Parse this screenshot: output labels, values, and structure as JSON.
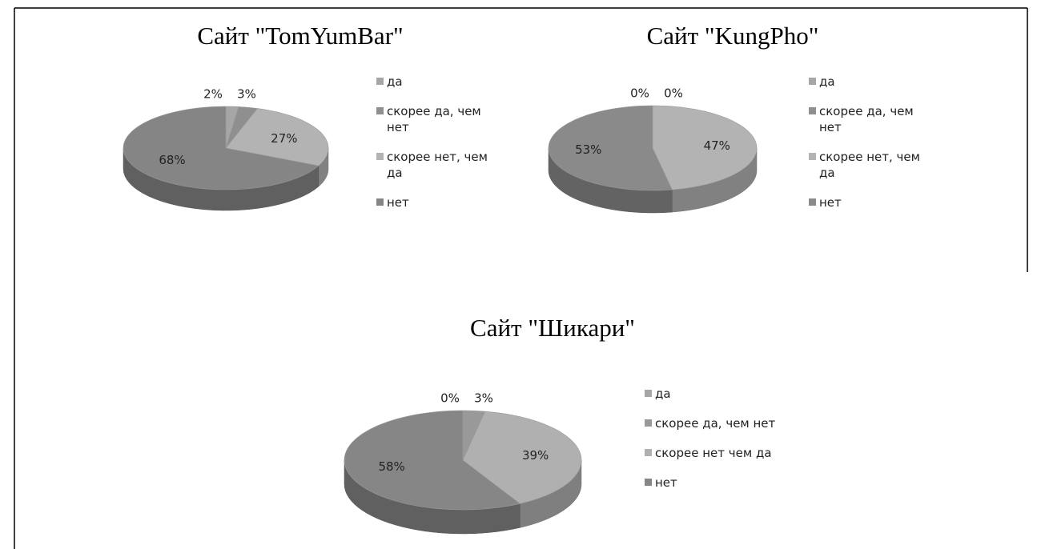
{
  "chart_data": [
    {
      "type": "pie",
      "title": "Сайт \"TomYumBar\"",
      "categories": [
        "да",
        "скорее да, чем нет",
        "скорее нет, чем да",
        "нет"
      ],
      "values": [
        2,
        3,
        27,
        68
      ],
      "value_labels": [
        "2%",
        "3%",
        "27%",
        "68%"
      ],
      "colors": [
        "#a6a6a6",
        "#8f8f8f",
        "#b3b3b3",
        "#858585"
      ]
    },
    {
      "type": "pie",
      "title": "Сайт \"KungPho\"",
      "categories": [
        "да",
        "скорее да, чем нет",
        "скорее нет, чем да",
        "нет"
      ],
      "values": [
        0,
        0,
        47,
        53
      ],
      "value_labels": [
        "0%",
        "0%",
        "47%",
        "53%"
      ],
      "colors": [
        "#a6a6a6",
        "#8f8f8f",
        "#b3b3b3",
        "#8a8a8a"
      ]
    },
    {
      "type": "pie",
      "title": "Сайт \"Шикари\"",
      "categories": [
        "да",
        "скорее да, чем нет",
        "скорее нет чем да",
        "нет"
      ],
      "values": [
        0,
        3,
        39,
        58
      ],
      "value_labels": [
        "0%",
        "3%",
        "39%",
        "58%"
      ],
      "colors": [
        "#a6a6a6",
        "#999999",
        "#b0b0b0",
        "#868686"
      ]
    }
  ]
}
